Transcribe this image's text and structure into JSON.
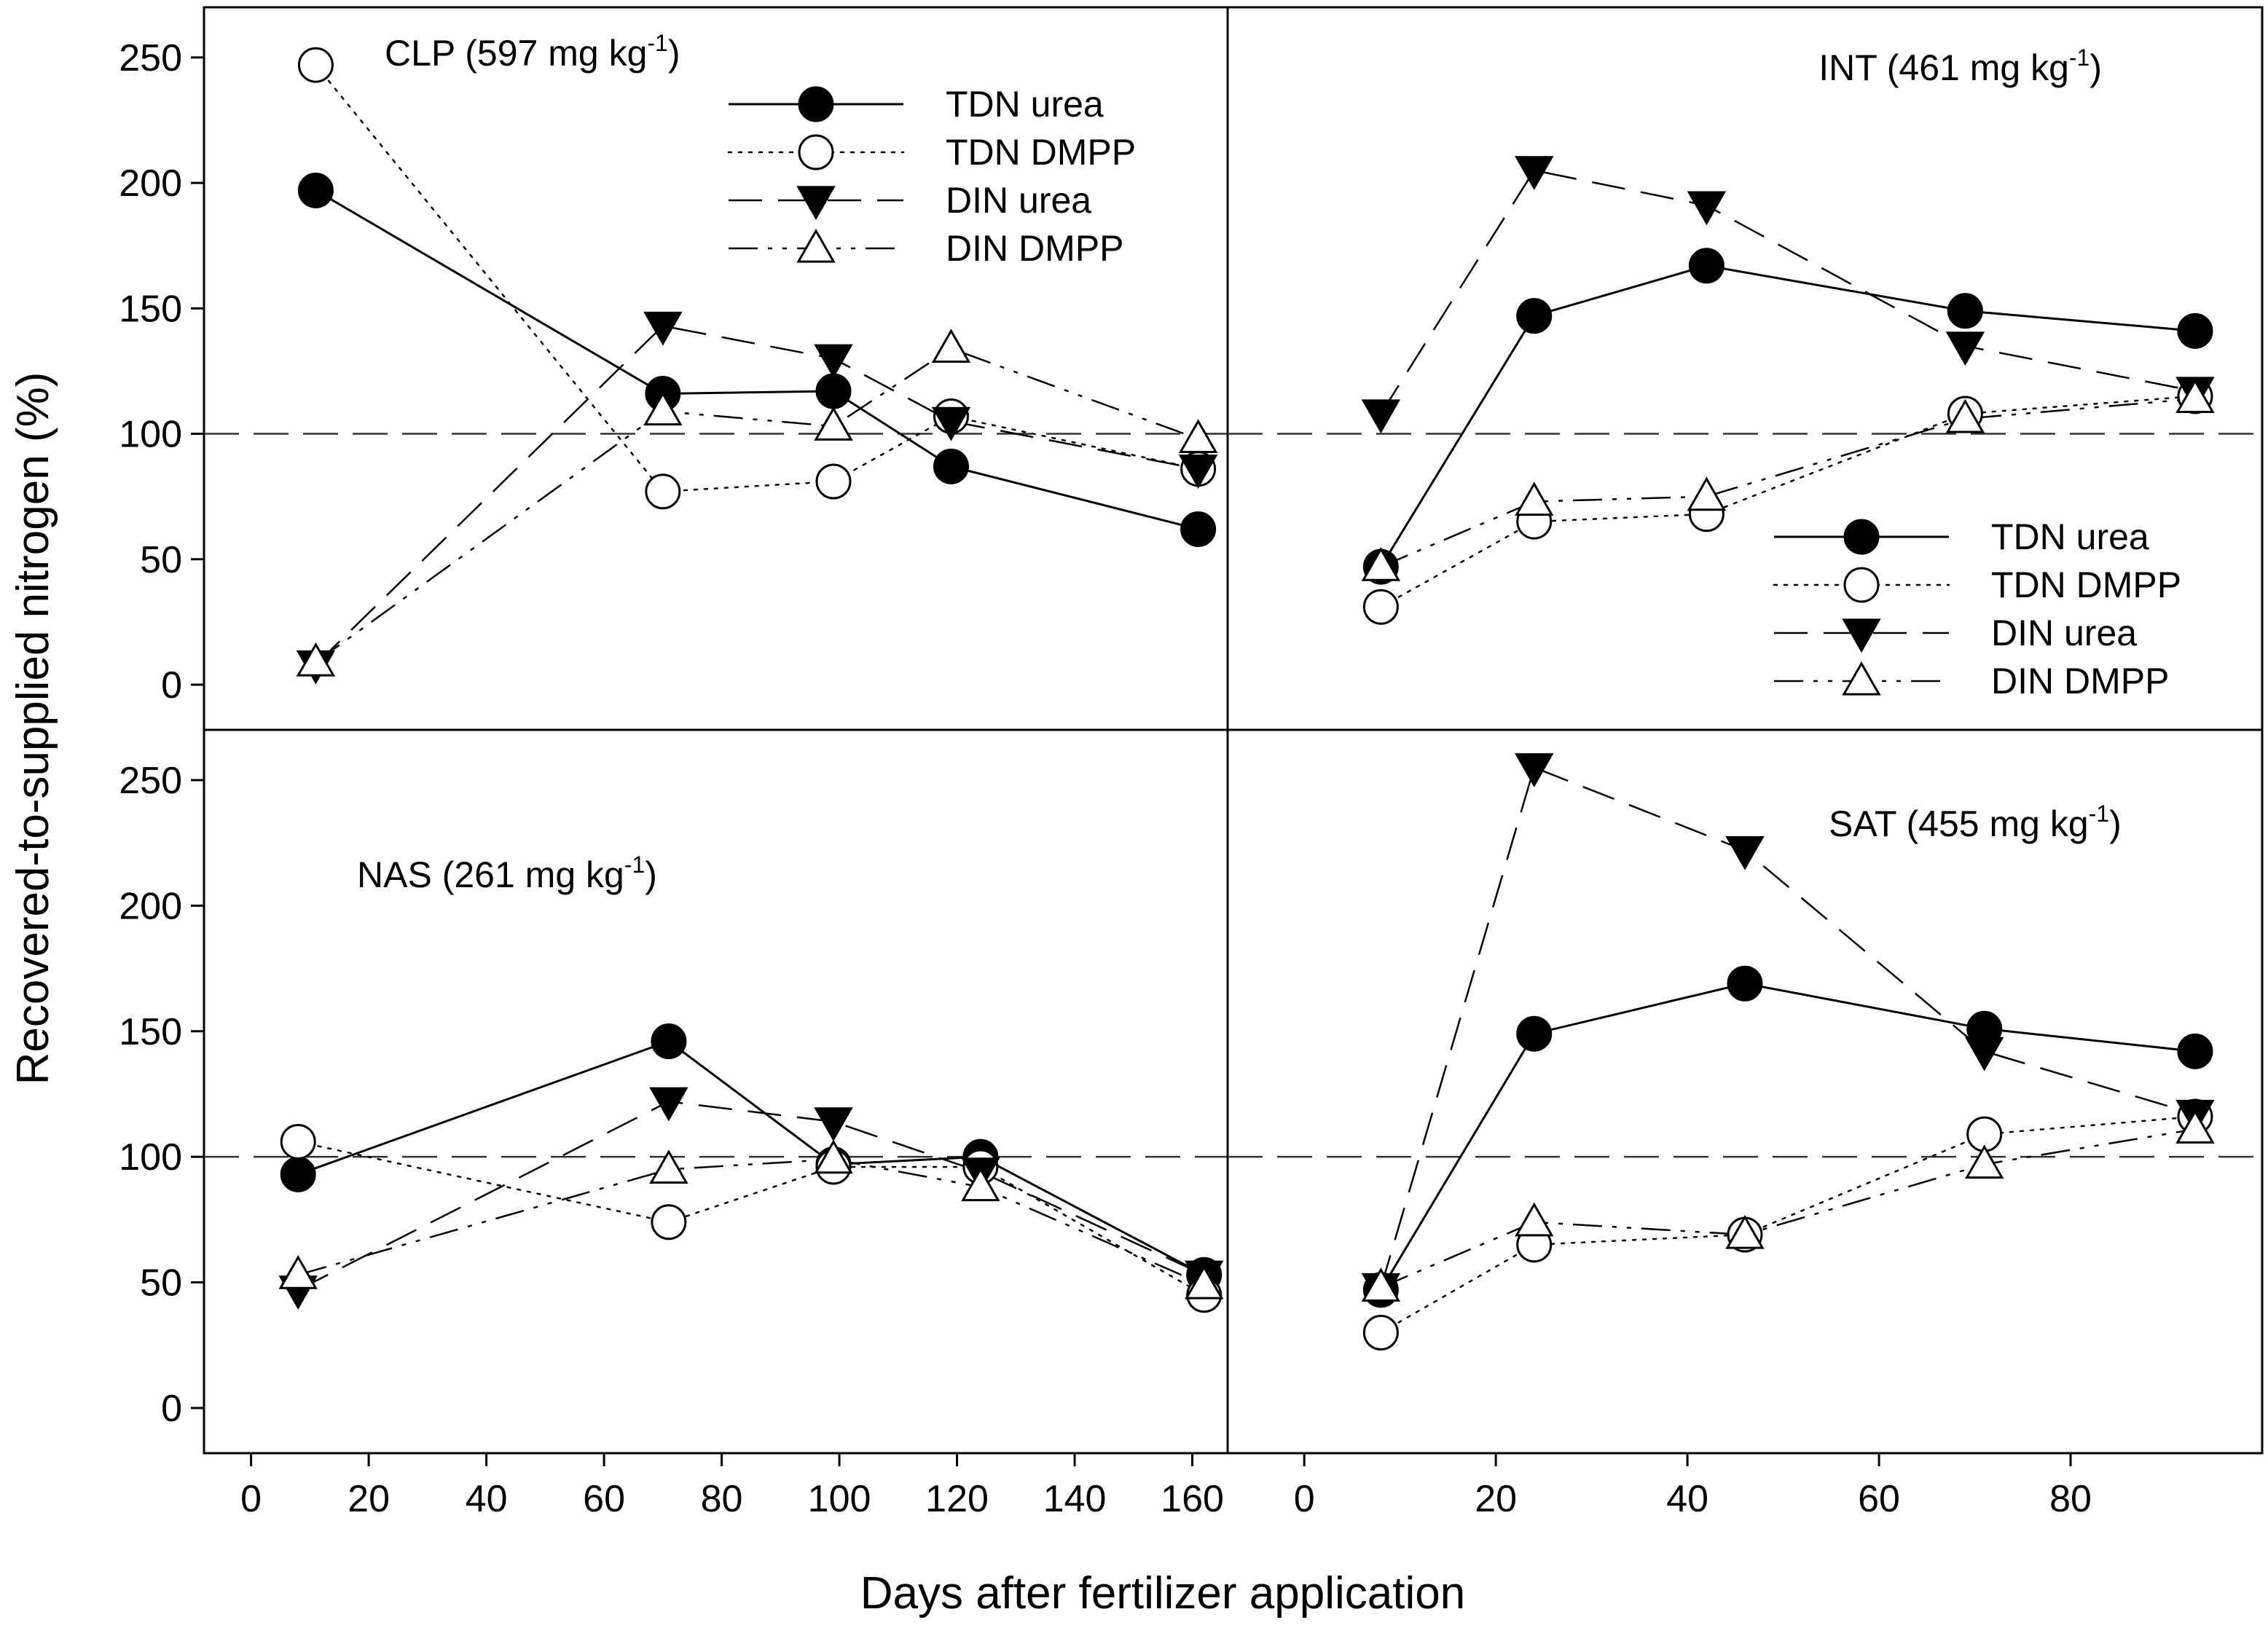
{
  "figure": {
    "xlabel": "Days after fertilizer application",
    "ylabel": "Recovered-to-supplied nitrogen (%)"
  },
  "styles": {
    "TDN urea": {
      "marker": "filled-circle",
      "line": "solid"
    },
    "TDN DMPP": {
      "marker": "open-circle",
      "line": "dotted"
    },
    "DIN urea": {
      "marker": "filled-triangle-down",
      "line": "dashed"
    },
    "DIN DMPP": {
      "marker": "open-triangle-up",
      "line": "dash-dot-dot"
    }
  },
  "chart_data": [
    {
      "type": "line",
      "id": "clp",
      "label": "CLP (597 mg kg",
      "label_sup": "-1",
      "label_close": ")",
      "xlim": [
        -8,
        166
      ],
      "ylim": [
        -18,
        270
      ],
      "xticks": [
        0,
        20,
        40,
        60,
        80,
        100,
        120,
        140,
        160
      ],
      "yticks": [
        0,
        50,
        100,
        150,
        200,
        250
      ],
      "reference_line": 100,
      "legend": true,
      "series": [
        {
          "name": "TDN urea",
          "x": [
            11,
            70,
            99,
            119,
            161
          ],
          "y": [
            197,
            116,
            117,
            87,
            62
          ]
        },
        {
          "name": "TDN DMPP",
          "x": [
            11,
            70,
            99,
            119,
            161
          ],
          "y": [
            247,
            77,
            81,
            107,
            86
          ]
        },
        {
          "name": "DIN urea",
          "x": [
            11,
            70,
            99,
            119,
            161
          ],
          "y": [
            8,
            143,
            130,
            105,
            86
          ]
        },
        {
          "name": "DIN DMPP",
          "x": [
            11,
            70,
            99,
            119,
            161
          ],
          "y": [
            9,
            109,
            103,
            134,
            98
          ]
        }
      ]
    },
    {
      "type": "line",
      "id": "int",
      "label": "INT (461 mg kg",
      "label_sup": "-1",
      "label_close": ")",
      "xlim": [
        -8,
        100
      ],
      "ylim": [
        -18,
        270
      ],
      "xticks": [
        0,
        20,
        40,
        60,
        80
      ],
      "yticks": [
        0,
        50,
        100,
        150,
        200,
        250
      ],
      "reference_line": 100,
      "legend": true,
      "series": [
        {
          "name": "TDN urea",
          "x": [
            8,
            24,
            42,
            69,
            93
          ],
          "y": [
            47,
            147,
            167,
            149,
            141
          ]
        },
        {
          "name": "TDN DMPP",
          "x": [
            8,
            24,
            42,
            69,
            93
          ],
          "y": [
            31,
            65,
            68,
            108,
            115
          ]
        },
        {
          "name": "DIN urea",
          "x": [
            8,
            24,
            42,
            69,
            93
          ],
          "y": [
            108,
            205,
            191,
            135,
            117
          ]
        },
        {
          "name": "DIN DMPP",
          "x": [
            8,
            24,
            42,
            69,
            93
          ],
          "y": [
            47,
            73,
            75,
            106,
            114
          ]
        }
      ]
    },
    {
      "type": "line",
      "id": "nas",
      "label": "NAS (261 mg kg",
      "label_sup": "-1",
      "label_close": ")",
      "xlim": [
        -8,
        166
      ],
      "ylim": [
        -18,
        270
      ],
      "xticks": [
        0,
        20,
        40,
        60,
        80,
        100,
        120,
        140,
        160
      ],
      "yticks": [
        0,
        50,
        100,
        150,
        200,
        250
      ],
      "reference_line": 100,
      "legend": false,
      "series": [
        {
          "name": "TDN urea",
          "x": [
            8,
            71,
            99,
            124,
            162
          ],
          "y": [
            93,
            146,
            97,
            100,
            53
          ]
        },
        {
          "name": "TDN DMPP",
          "x": [
            8,
            71,
            99,
            124,
            162
          ],
          "y": [
            106,
            74,
            96,
            96,
            45
          ]
        },
        {
          "name": "DIN urea",
          "x": [
            8,
            71,
            99,
            124,
            162
          ],
          "y": [
            47,
            122,
            114,
            94,
            53
          ]
        },
        {
          "name": "DIN DMPP",
          "x": [
            8,
            71,
            99,
            124,
            162
          ],
          "y": [
            53,
            95,
            99,
            88,
            49
          ]
        }
      ]
    },
    {
      "type": "line",
      "id": "sat",
      "label": "SAT (455 mg kg",
      "label_sup": "-1",
      "label_close": ")",
      "xlim": [
        -8,
        100
      ],
      "ylim": [
        -18,
        270
      ],
      "xticks": [
        0,
        20,
        40,
        60,
        80
      ],
      "yticks": [
        0,
        50,
        100,
        150,
        200,
        250
      ],
      "reference_line": 100,
      "legend": false,
      "series": [
        {
          "name": "TDN urea",
          "x": [
            8,
            24,
            46,
            71,
            93
          ],
          "y": [
            47,
            149,
            169,
            151,
            142
          ]
        },
        {
          "name": "TDN DMPP",
          "x": [
            8,
            24,
            46,
            71,
            93
          ],
          "y": [
            30,
            65,
            69,
            109,
            116
          ]
        },
        {
          "name": "DIN urea",
          "x": [
            8,
            24,
            46,
            71,
            93
          ],
          "y": [
            48,
            255,
            222,
            142,
            117
          ]
        },
        {
          "name": "DIN DMPP",
          "x": [
            8,
            24,
            46,
            71,
            93
          ],
          "y": [
            48,
            74,
            69,
            97,
            111
          ]
        }
      ]
    }
  ]
}
